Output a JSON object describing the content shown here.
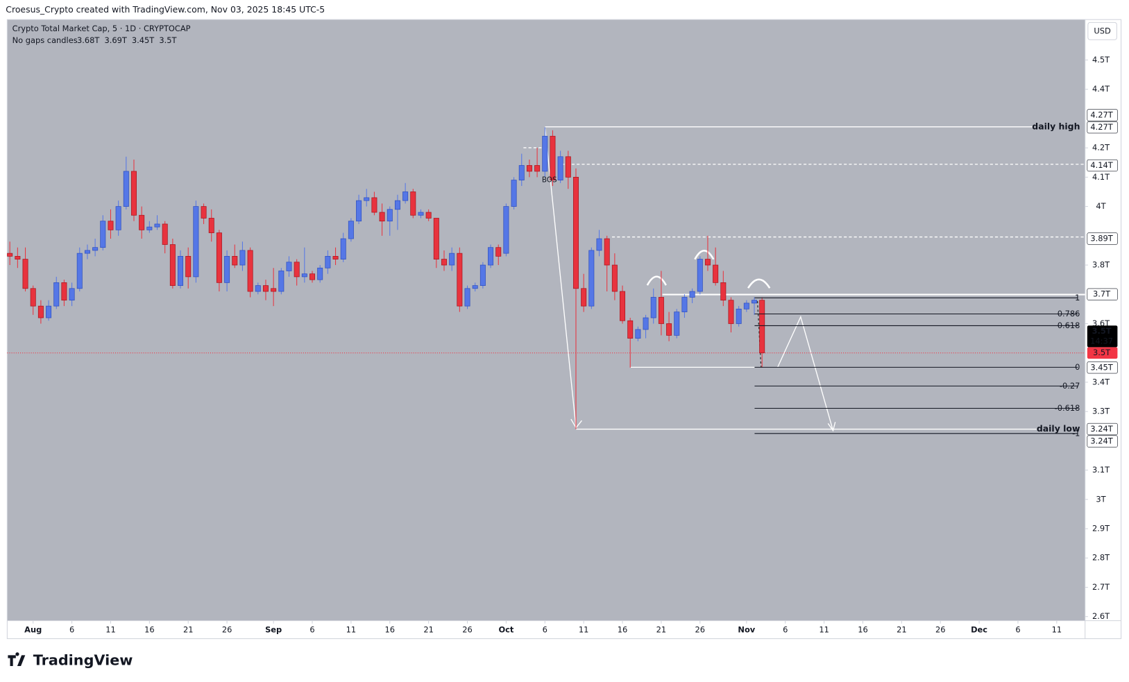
{
  "header": {
    "credit": "Croesus_Crypto created with TradingView.com, Nov 03, 2025 18:45 UTC-5",
    "symbol": "Crypto Total Market Cap, 5 · 1D · CRYPTOCAP",
    "candles_label": "No gaps candles",
    "ohlc": [
      "3.68T",
      "3.69T",
      "3.45T",
      "3.5T"
    ]
  },
  "currency": "USD",
  "brand": "TradingView",
  "chart_data": {
    "type": "candlestick",
    "up_color": "#5577e6",
    "down_color": "#e8333e",
    "x": [
      "2025-07-29",
      "2025-07-30",
      "2025-07-31",
      "2025-08-01",
      "2025-08-02",
      "2025-08-03",
      "2025-08-04",
      "2025-08-05",
      "2025-08-06",
      "2025-08-07",
      "2025-08-08",
      "2025-08-09",
      "2025-08-10",
      "2025-08-11",
      "2025-08-12",
      "2025-08-13",
      "2025-08-14",
      "2025-08-15",
      "2025-08-16",
      "2025-08-17",
      "2025-08-18",
      "2025-08-19",
      "2025-08-20",
      "2025-08-21",
      "2025-08-22",
      "2025-08-23",
      "2025-08-24",
      "2025-08-25",
      "2025-08-26",
      "2025-08-27",
      "2025-08-28",
      "2025-08-29",
      "2025-08-30",
      "2025-08-31",
      "2025-09-01",
      "2025-09-02",
      "2025-09-03",
      "2025-09-04",
      "2025-09-05",
      "2025-09-06",
      "2025-09-07",
      "2025-09-08",
      "2025-09-09",
      "2025-09-10",
      "2025-09-11",
      "2025-09-12",
      "2025-09-13",
      "2025-09-14",
      "2025-09-15",
      "2025-09-16",
      "2025-09-17",
      "2025-09-18",
      "2025-09-19",
      "2025-09-20",
      "2025-09-21",
      "2025-09-22",
      "2025-09-23",
      "2025-09-24",
      "2025-09-25",
      "2025-09-26",
      "2025-09-27",
      "2025-09-28",
      "2025-09-29",
      "2025-09-30",
      "2025-10-01",
      "2025-10-02",
      "2025-10-03",
      "2025-10-04",
      "2025-10-05",
      "2025-10-06",
      "2025-10-07",
      "2025-10-08",
      "2025-10-09",
      "2025-10-10",
      "2025-10-11",
      "2025-10-12",
      "2025-10-13",
      "2025-10-14",
      "2025-10-15",
      "2025-10-16",
      "2025-10-17",
      "2025-10-18",
      "2025-10-19",
      "2025-10-20",
      "2025-10-21",
      "2025-10-22",
      "2025-10-23",
      "2025-10-24",
      "2025-10-25",
      "2025-10-26",
      "2025-10-27",
      "2025-10-28",
      "2025-10-29",
      "2025-10-30",
      "2025-10-31",
      "2025-11-01",
      "2025-11-02",
      "2025-11-03"
    ],
    "open": [
      3.84,
      3.83,
      3.82,
      3.72,
      3.66,
      3.62,
      3.66,
      3.74,
      3.68,
      3.72,
      3.84,
      3.85,
      3.86,
      3.95,
      3.92,
      4.0,
      4.12,
      3.97,
      3.92,
      3.93,
      3.94,
      3.87,
      3.73,
      3.83,
      3.76,
      4.0,
      3.96,
      3.91,
      3.74,
      3.83,
      3.8,
      3.85,
      3.71,
      3.73,
      3.72,
      3.71,
      3.78,
      3.81,
      3.76,
      3.77,
      3.75,
      3.79,
      3.83,
      3.82,
      3.89,
      3.95,
      4.02,
      4.03,
      3.98,
      3.95,
      3.99,
      4.02,
      4.05,
      3.97,
      3.98,
      3.96,
      3.82,
      3.8,
      3.84,
      3.66,
      3.72,
      3.73,
      3.8,
      3.86,
      3.84,
      4.0,
      4.09,
      4.14,
      4.14,
      4.12,
      4.24,
      4.09,
      4.17,
      4.1,
      3.72,
      3.66,
      3.85,
      3.89,
      3.8,
      3.71,
      3.61,
      3.55,
      3.58,
      3.62,
      3.69,
      3.6,
      3.56,
      3.64,
      3.69,
      3.71,
      3.82,
      3.8,
      3.74,
      3.68,
      3.6,
      3.65,
      3.67,
      3.68
    ],
    "high": [
      3.88,
      3.86,
      3.86,
      3.73,
      3.68,
      3.68,
      3.76,
      3.75,
      3.74,
      3.86,
      3.87,
      3.89,
      3.97,
      3.99,
      4.02,
      4.17,
      4.16,
      4.0,
      3.95,
      3.97,
      3.95,
      3.89,
      3.85,
      3.86,
      4.02,
      4.01,
      3.99,
      3.92,
      3.85,
      3.87,
      3.88,
      3.86,
      3.74,
      3.75,
      3.79,
      3.79,
      3.83,
      3.82,
      3.86,
      3.78,
      3.8,
      3.85,
      3.86,
      3.91,
      3.96,
      4.04,
      4.06,
      4.05,
      4.01,
      4.0,
      4.04,
      4.08,
      4.06,
      3.99,
      3.99,
      3.96,
      3.85,
      3.86,
      3.86,
      3.73,
      3.74,
      3.81,
      3.87,
      3.87,
      4.01,
      4.1,
      4.18,
      4.16,
      4.2,
      4.27,
      4.26,
      4.19,
      4.19,
      4.13,
      3.77,
      3.86,
      3.92,
      3.9,
      3.84,
      3.73,
      3.62,
      3.59,
      3.63,
      3.72,
      3.78,
      3.64,
      3.65,
      3.7,
      3.72,
      3.83,
      3.9,
      3.86,
      3.78,
      3.69,
      3.66,
      3.68,
      3.69,
      3.69
    ],
    "low": [
      3.8,
      3.79,
      3.71,
      3.63,
      3.6,
      3.61,
      3.65,
      3.66,
      3.66,
      3.71,
      3.82,
      3.83,
      3.85,
      3.89,
      3.9,
      3.99,
      3.95,
      3.89,
      3.91,
      3.92,
      3.84,
      3.72,
      3.72,
      3.72,
      3.74,
      3.94,
      3.88,
      3.71,
      3.71,
      3.79,
      3.78,
      3.69,
      3.7,
      3.68,
      3.66,
      3.7,
      3.76,
      3.73,
      3.74,
      3.74,
      3.74,
      3.77,
      3.8,
      3.81,
      3.88,
      3.94,
      4.0,
      3.97,
      3.9,
      3.9,
      3.92,
      4.01,
      3.96,
      3.96,
      3.95,
      3.79,
      3.78,
      3.78,
      3.64,
      3.65,
      3.71,
      3.72,
      3.79,
      3.8,
      3.83,
      3.99,
      4.07,
      4.1,
      4.1,
      4.1,
      4.07,
      4.08,
      4.06,
      3.24,
      3.64,
      3.65,
      3.83,
      3.71,
      3.68,
      3.6,
      3.45,
      3.54,
      3.55,
      3.6,
      3.56,
      3.54,
      3.55,
      3.62,
      3.67,
      3.7,
      3.78,
      3.73,
      3.66,
      3.57,
      3.59,
      3.64,
      3.63,
      3.45
    ],
    "close": [
      3.83,
      3.82,
      3.72,
      3.66,
      3.62,
      3.66,
      3.74,
      3.68,
      3.72,
      3.84,
      3.85,
      3.86,
      3.95,
      3.92,
      4.0,
      4.12,
      3.97,
      3.92,
      3.93,
      3.94,
      3.87,
      3.73,
      3.83,
      3.76,
      4.0,
      3.96,
      3.91,
      3.74,
      3.83,
      3.8,
      3.85,
      3.71,
      3.73,
      3.71,
      3.71,
      3.78,
      3.81,
      3.76,
      3.77,
      3.75,
      3.79,
      3.83,
      3.82,
      3.89,
      3.95,
      4.02,
      4.03,
      3.98,
      3.95,
      3.99,
      4.02,
      4.05,
      3.97,
      3.98,
      3.96,
      3.82,
      3.8,
      3.84,
      3.66,
      3.72,
      3.73,
      3.8,
      3.86,
      3.83,
      4.0,
      4.09,
      4.14,
      4.12,
      4.12,
      4.24,
      4.09,
      4.17,
      4.1,
      3.72,
      3.66,
      3.85,
      3.89,
      3.8,
      3.71,
      3.61,
      3.55,
      3.58,
      3.62,
      3.69,
      3.6,
      3.56,
      3.64,
      3.69,
      3.71,
      3.82,
      3.8,
      3.74,
      3.68,
      3.6,
      3.65,
      3.67,
      3.68,
      3.5
    ],
    "xlim": [
      "2025-07-28",
      "2025-12-14"
    ],
    "xticks": [
      {
        "value": "2025-08-01",
        "label": "Aug"
      },
      {
        "value": "2025-08-06",
        "label": "6"
      },
      {
        "value": "2025-08-11",
        "label": "11"
      },
      {
        "value": "2025-08-16",
        "label": "16"
      },
      {
        "value": "2025-08-21",
        "label": "21"
      },
      {
        "value": "2025-08-26",
        "label": "26"
      },
      {
        "value": "2025-09-01",
        "label": "Sep"
      },
      {
        "value": "2025-09-06",
        "label": "6"
      },
      {
        "value": "2025-09-11",
        "label": "11"
      },
      {
        "value": "2025-09-16",
        "label": "16"
      },
      {
        "value": "2025-09-21",
        "label": "21"
      },
      {
        "value": "2025-09-26",
        "label": "26"
      },
      {
        "value": "2025-10-01",
        "label": "Oct"
      },
      {
        "value": "2025-10-06",
        "label": "6"
      },
      {
        "value": "2025-10-11",
        "label": "11"
      },
      {
        "value": "2025-10-16",
        "label": "16"
      },
      {
        "value": "2025-10-21",
        "label": "21"
      },
      {
        "value": "2025-10-26",
        "label": "26"
      },
      {
        "value": "2025-11-01",
        "label": "Nov"
      },
      {
        "value": "2025-11-06",
        "label": "6"
      },
      {
        "value": "2025-11-11",
        "label": "11"
      },
      {
        "value": "2025-11-16",
        "label": "16"
      },
      {
        "value": "2025-11-21",
        "label": "21"
      },
      {
        "value": "2025-11-26",
        "label": "26"
      },
      {
        "value": "2025-12-01",
        "label": "Dec"
      },
      {
        "value": "2025-12-06",
        "label": "6"
      },
      {
        "value": "2025-12-11",
        "label": "11"
      }
    ],
    "ylim": [
      2.586,
      4.638
    ],
    "yticks": [
      {
        "value": 4.5,
        "label": "4.5T"
      },
      {
        "value": 4.4,
        "label": "4.4T"
      },
      {
        "value": 4.2,
        "label": "4.2T"
      },
      {
        "value": 4.1,
        "label": "4.1T"
      },
      {
        "value": 4,
        "label": "4T"
      },
      {
        "value": 3.8,
        "label": "3.8T"
      },
      {
        "value": 3.6,
        "label": "3.6T"
      },
      {
        "value": 3.4,
        "label": "3.4T"
      },
      {
        "value": 3.3,
        "label": "3.3T"
      },
      {
        "value": 3.1,
        "label": "3.1T"
      },
      {
        "value": 3,
        "label": "3T"
      },
      {
        "value": 2.9,
        "label": "2.9T"
      },
      {
        "value": 2.8,
        "label": "2.8T"
      },
      {
        "value": 2.7,
        "label": "2.7T"
      },
      {
        "value": 2.6,
        "label": "2.6T"
      }
    ],
    "price_labels": [
      {
        "value": 4.27,
        "label": "4.27T",
        "color": "#ffffff"
      },
      {
        "value": 4.27,
        "label": "4.27T",
        "color": "#ffffff"
      },
      {
        "value": 4.14,
        "label": "4.14T",
        "color": "#ffffff"
      },
      {
        "value": 3.89,
        "label": "3.89T",
        "color": "#ffffff"
      },
      {
        "value": 3.7,
        "label": "3.7T",
        "color": "#ffffff"
      },
      {
        "value": 3.5,
        "label": "3.5T",
        "color": "#f23645"
      },
      {
        "value": 3.45,
        "label": "3.45T",
        "color": "#ffffff"
      },
      {
        "value": 3.24,
        "label": "3.24T",
        "color": "#ffffff"
      },
      {
        "value": 3.24,
        "label": "3.24T",
        "color": "#ffffff"
      }
    ],
    "countdown": {
      "price": "3.5T",
      "time": "14:37"
    },
    "fib": [
      {
        "level": 1,
        "price": 3.688
      },
      {
        "level": 0.786,
        "price": 3.633
      },
      {
        "level": 0.618,
        "price": 3.593
      },
      {
        "level": 0,
        "price": 3.451
      },
      {
        "level": -0.27,
        "price": 3.387
      },
      {
        "level": -0.618,
        "price": 3.311
      },
      {
        "level": -1,
        "price": 3.225
      }
    ],
    "annotations": {
      "high": "daily high",
      "low": "daily low",
      "bos": "BOS"
    }
  }
}
